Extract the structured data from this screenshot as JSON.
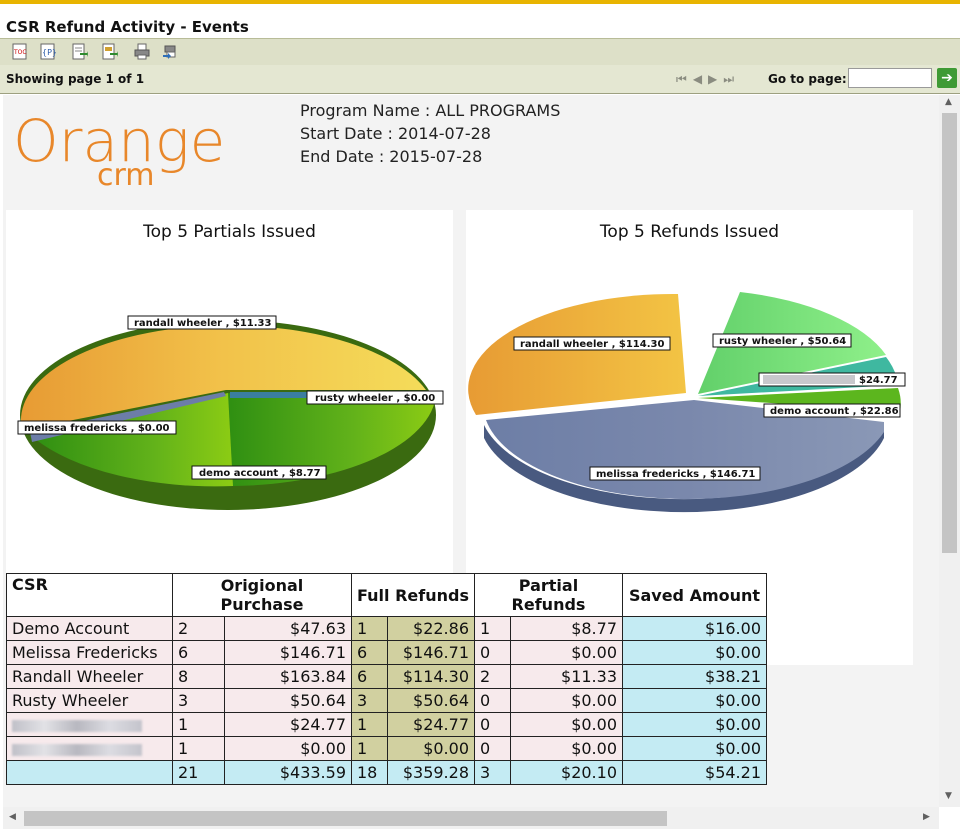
{
  "window": {
    "title": "CSR Refund Activity - Events"
  },
  "toolbar": {
    "icons": [
      "toc-icon",
      "parameters-icon",
      "export-data-icon",
      "export-report-icon",
      "print-icon",
      "print-server-icon"
    ]
  },
  "pager": {
    "showing_label": "Showing page  1  of  1",
    "goto_label": "Go to page:",
    "goto_value": ""
  },
  "header": {
    "logo_text": "Orange",
    "logo_subtext": "crm",
    "program_name": "Program Name : ALL PROGRAMS",
    "start_date": "Start Date : 2014-07-28",
    "end_date": "End Date : 2015-07-28"
  },
  "chart_data": [
    {
      "type": "pie",
      "title": "Top 5 Partials Issued",
      "slices": [
        {
          "label": "randall wheeler",
          "value": 11.33,
          "display": "randall wheeler , $11.33",
          "color": "#f2c24a"
        },
        {
          "label": "rusty wheeler",
          "value": 0.0,
          "display": "rusty wheeler , $0.00",
          "color": "#3a7ea0"
        },
        {
          "label": "demo account",
          "value": 8.77,
          "display": "demo account , $8.77",
          "color": "#4aa51a"
        },
        {
          "label": "melissa fredericks",
          "value": 0.0,
          "display": "melissa fredericks , $0.00",
          "color": "#7a8ab0"
        }
      ]
    },
    {
      "type": "pie",
      "title": "Top 5 Refunds Issued",
      "slices": [
        {
          "label": "randall wheeler",
          "value": 114.3,
          "display": "randall wheeler , $114.30",
          "color": "#f2c24a"
        },
        {
          "label": "rusty wheeler",
          "value": 50.64,
          "display": "rusty wheeler , $50.64",
          "color": "#7fe07f"
        },
        {
          "label": "redacted",
          "value": 24.77,
          "display": "$24.77",
          "color": "#3fb8a0"
        },
        {
          "label": "demo account",
          "value": 22.86,
          "display": "demo account , $22.86",
          "color": "#5cb61e"
        },
        {
          "label": "melissa fredericks",
          "value": 146.71,
          "display": "melissa fredericks , $146.71",
          "color": "#7a88ac"
        }
      ]
    }
  ],
  "table": {
    "headers": {
      "csr": "CSR",
      "orig": "Origional Purchase",
      "full": "Full Refunds",
      "partial": "Partial Refunds",
      "saved": "Saved Amount"
    },
    "rows": [
      {
        "csr": "Demo Account",
        "orig_count": "2",
        "orig_amount": "$47.63",
        "full_count": "1",
        "full_amount": "$22.86",
        "partial_count": "1",
        "partial_amount": "$8.77",
        "saved": "$16.00"
      },
      {
        "csr": "Melissa Fredericks",
        "orig_count": "6",
        "orig_amount": "$146.71",
        "full_count": "6",
        "full_amount": "$146.71",
        "partial_count": "0",
        "partial_amount": "$0.00",
        "saved": "$0.00"
      },
      {
        "csr": "Randall Wheeler",
        "orig_count": "8",
        "orig_amount": "$163.84",
        "full_count": "6",
        "full_amount": "$114.30",
        "partial_count": "2",
        "partial_amount": "$11.33",
        "saved": "$38.21"
      },
      {
        "csr": "Rusty Wheeler",
        "orig_count": "3",
        "orig_amount": "$50.64",
        "full_count": "3",
        "full_amount": "$50.64",
        "partial_count": "0",
        "partial_amount": "$0.00",
        "saved": "$0.00"
      },
      {
        "csr": "",
        "orig_count": "1",
        "orig_amount": "$24.77",
        "full_count": "1",
        "full_amount": "$24.77",
        "partial_count": "0",
        "partial_amount": "$0.00",
        "saved": "$0.00"
      },
      {
        "csr": "",
        "orig_count": "1",
        "orig_amount": "$0.00",
        "full_count": "1",
        "full_amount": "$0.00",
        "partial_count": "0",
        "partial_amount": "$0.00",
        "saved": "$0.00"
      }
    ],
    "totals": {
      "orig_count": "21",
      "orig_amount": "$433.59",
      "full_count": "18",
      "full_amount": "$359.28",
      "partial_count": "3",
      "partial_amount": "$20.10",
      "saved": "$54.21"
    }
  }
}
